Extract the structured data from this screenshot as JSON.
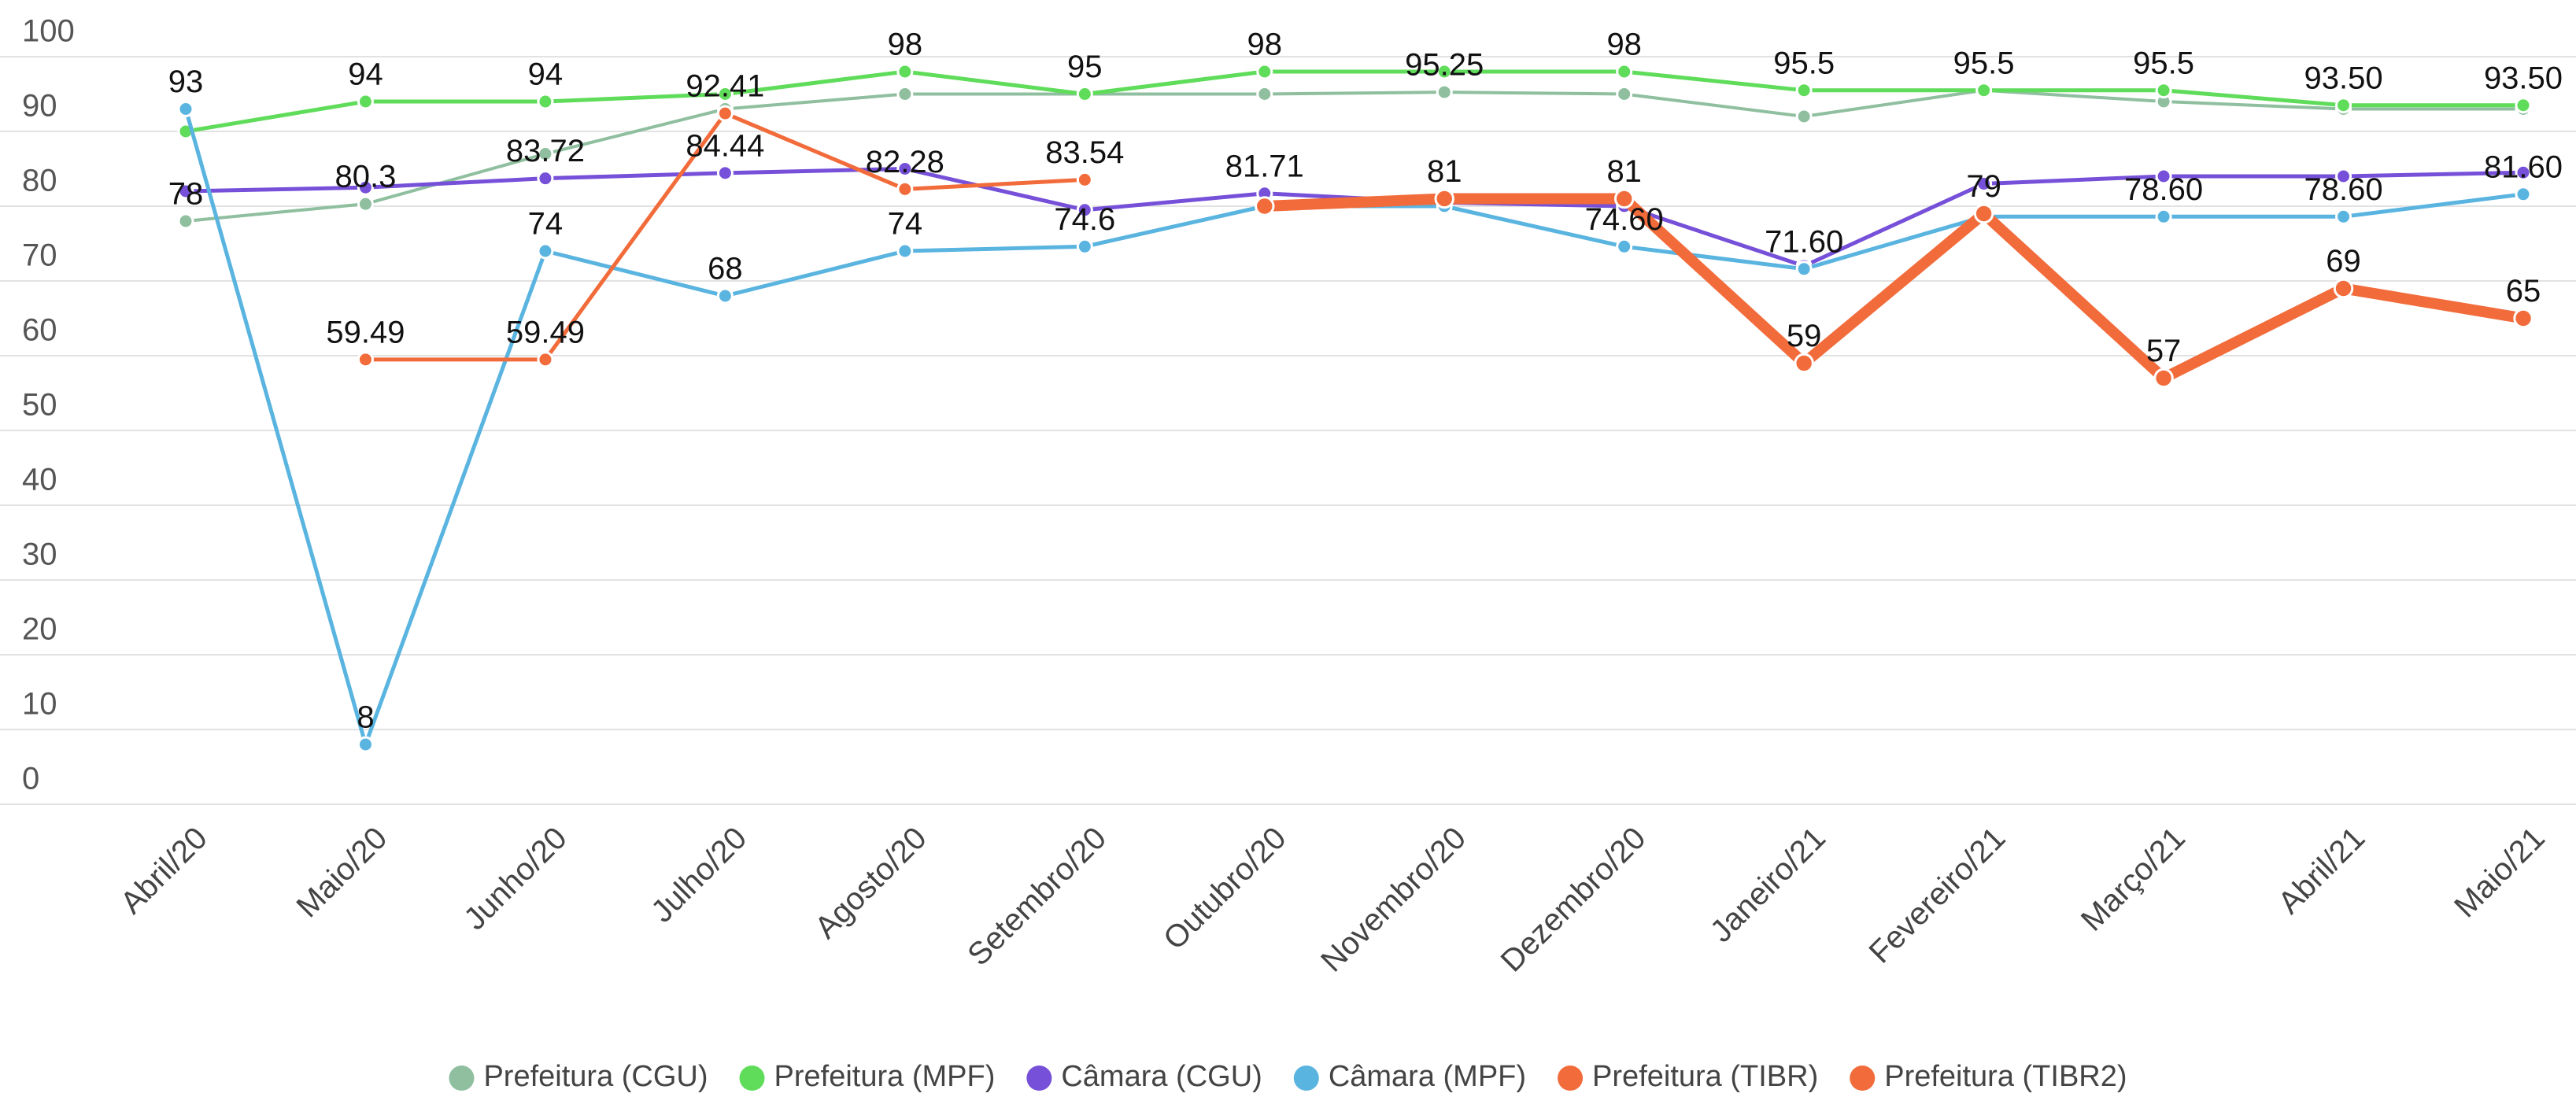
{
  "chart_data": {
    "type": "line",
    "categories": [
      "Abril/20",
      "Maio/20",
      "Junho/20",
      "Julho/20",
      "Agosto/20",
      "Setembro/20",
      "Outubro/20",
      "Novembro/20",
      "Dezembro/20",
      "Janeiro/21",
      "Fevereiro/21",
      "Março/21",
      "Abril/21",
      "Maio/21"
    ],
    "ylim": [
      0,
      100
    ],
    "yticks": [
      0,
      10,
      20,
      30,
      40,
      50,
      60,
      70,
      80,
      90,
      100
    ],
    "grid": true,
    "legend": "bottom",
    "series": [
      {
        "name": "Prefeitura (CGU)",
        "color": "#8fbf9f",
        "width": 4,
        "values": [
          78,
          80.3,
          87,
          93,
          95,
          95,
          95,
          95.25,
          95,
          92,
          95.5,
          94,
          93,
          93
        ],
        "value_labels": [
          "78",
          "80.3",
          null,
          null,
          null,
          null,
          null,
          "95.25",
          null,
          null,
          null,
          null,
          null,
          null
        ]
      },
      {
        "name": "Prefeitura (MPF)",
        "color": "#5fdc5a",
        "width": 5,
        "values": [
          90,
          94,
          94,
          95,
          98,
          95,
          98,
          98,
          98,
          95.5,
          95.5,
          95.5,
          93.5,
          93.5
        ],
        "value_labels": [
          null,
          "94",
          "94",
          null,
          "98",
          "95",
          "98",
          null,
          "98",
          "95.5",
          "95.5",
          "95.5",
          "93.50",
          "93.50"
        ]
      },
      {
        "name": "Câmara (CGU)",
        "color": "#7650d8",
        "width": 5,
        "values": [
          82,
          82.5,
          83.72,
          84.44,
          85,
          79.5,
          81.71,
          80.5,
          80,
          72,
          83,
          84,
          84,
          84.5
        ],
        "value_labels": [
          null,
          null,
          "83.72",
          "84.44",
          null,
          null,
          "81.71",
          null,
          null,
          null,
          null,
          null,
          null,
          null
        ]
      },
      {
        "name": "Câmara (MPF)",
        "color": "#5ab4e0",
        "width": 5,
        "values": [
          93,
          8,
          74,
          68,
          74,
          74.6,
          80,
          80,
          74.6,
          71.6,
          78.6,
          78.6,
          78.6,
          81.6
        ],
        "value_labels": [
          "93",
          "8",
          "74",
          "68",
          "74",
          "74.6",
          null,
          null,
          "74.60",
          "71.60",
          null,
          "78.60",
          "78.60",
          "81.60"
        ]
      },
      {
        "name": "Prefeitura (TIBR)",
        "color": "#f26b3a",
        "width": 5,
        "values": [
          null,
          59.49,
          59.49,
          92.41,
          82.28,
          83.54,
          null,
          null,
          null,
          null,
          null,
          null,
          null,
          null
        ],
        "value_labels": [
          null,
          "59.49",
          "59.49",
          "92.41",
          "82.28",
          "83.54",
          null,
          null,
          null,
          null,
          null,
          null,
          null,
          null
        ]
      },
      {
        "name": "Prefeitura (TIBR2)",
        "color": "#f26b3a",
        "width": 14,
        "values": [
          null,
          null,
          null,
          null,
          null,
          null,
          80,
          81,
          81,
          59,
          79,
          57,
          69,
          65
        ],
        "value_labels": [
          null,
          null,
          null,
          null,
          null,
          null,
          null,
          "81",
          "81",
          "59",
          "79",
          "57",
          "69",
          "65"
        ]
      }
    ]
  }
}
